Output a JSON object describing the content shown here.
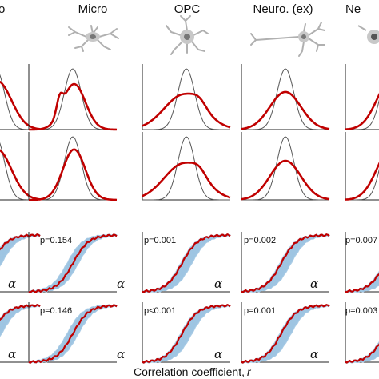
{
  "figure": {
    "columns": [
      "o",
      "Micro",
      "OPC",
      "Neuro. (ex)",
      "Ne"
    ],
    "xlabel": "Correlation coefficient, ",
    "xlabel_var": "r",
    "alpha_symbol": "α",
    "pvalues": {
      "row3": [
        "p=0.154",
        "p=0.001",
        "p=0.002",
        "p=0.007"
      ],
      "row4": [
        "p=0.146",
        "p<0.001",
        "p=0.001",
        "p=0.003"
      ]
    },
    "colors": {
      "observed": "#c00000",
      "reference": "#555555",
      "null": "#9ec4e2",
      "icon": "#9a9a9a"
    },
    "icons": [
      "microglia-icon",
      "opc-icon",
      "excitatory-neuron-icon",
      "neuron-icon"
    ]
  },
  "chart_data": {
    "type": "panel-grid",
    "density_panels": {
      "description": "",
      "series": [
        {
          "name": "",
          "role": "reference"
        },
        {
          "name": "",
          "role": "observed"
        }
      ],
      "spread": {
        "Micro": {
          "reference_sd": 0.12,
          "observed_sd": 0.16
        },
        "OPC": {
          "reference_sd": 0.12,
          "observed_sd": 0.28
        },
        "Neuro. (ex)": {
          "reference_sd": 0.12,
          "observed_sd": 0.22
        }
      }
    },
    "cdf_panels": {
      "p_values_row3": [
        0.154,
        0.001,
        0.002,
        0.007
      ],
      "p_values_row4": [
        0.146,
        0.001,
        0.001,
        0.003
      ]
    }
  }
}
